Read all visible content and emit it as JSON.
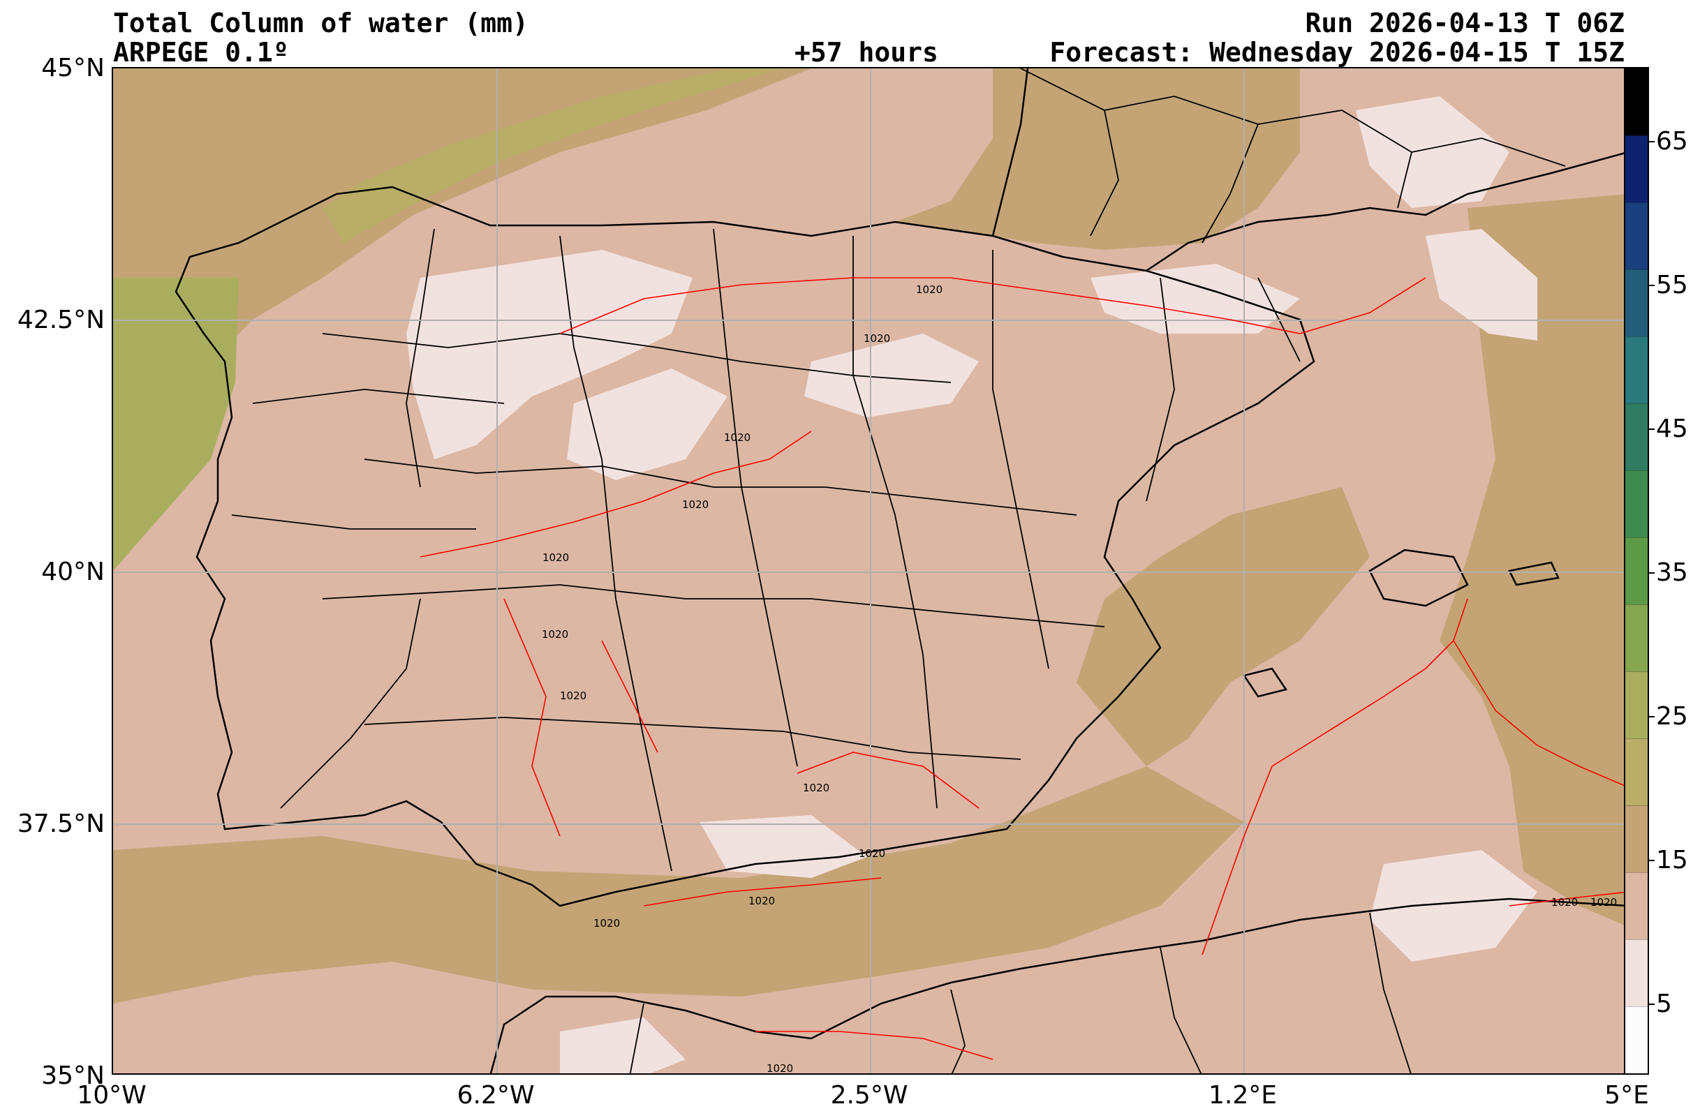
{
  "header": {
    "title": "Total Column of water (mm)",
    "model": "ARPEGE 0.1º",
    "lead_time": "+57 hours",
    "run": "Run 2026-04-13 T 06Z",
    "forecast": "Forecast: Wednesday 2026-04-15 T 15Z"
  },
  "axes": {
    "lat_labels": [
      "45°N",
      "42.5°N",
      "40°N",
      "37.5°N",
      "35°N"
    ],
    "lon_labels": [
      "10°W",
      "6.2°W",
      "2.5°W",
      "1.2°E",
      "5°E"
    ]
  },
  "isobar_label": "1020",
  "colorbar": {
    "levels": [
      0,
      5,
      10,
      15,
      20,
      25,
      30,
      35,
      40,
      45,
      50,
      55,
      60,
      65,
      70
    ],
    "colors": [
      "#fdfcfc",
      "#f2e2df",
      "#dcb7a4",
      "#c4a475",
      "#b9ad68",
      "#a9ae5f",
      "#86a64f",
      "#5c9a48",
      "#3f8a4f",
      "#2f7c63",
      "#2a7a7c",
      "#225e7a",
      "#1a3f7d",
      "#0f2270",
      "#000000"
    ],
    "tick_labels": [
      "5",
      "15",
      "25",
      "35",
      "45",
      "55",
      "65"
    ]
  },
  "colors": {
    "land_border": "#000000",
    "isobar": "#ff0000",
    "grid": "#b0b0b0"
  }
}
